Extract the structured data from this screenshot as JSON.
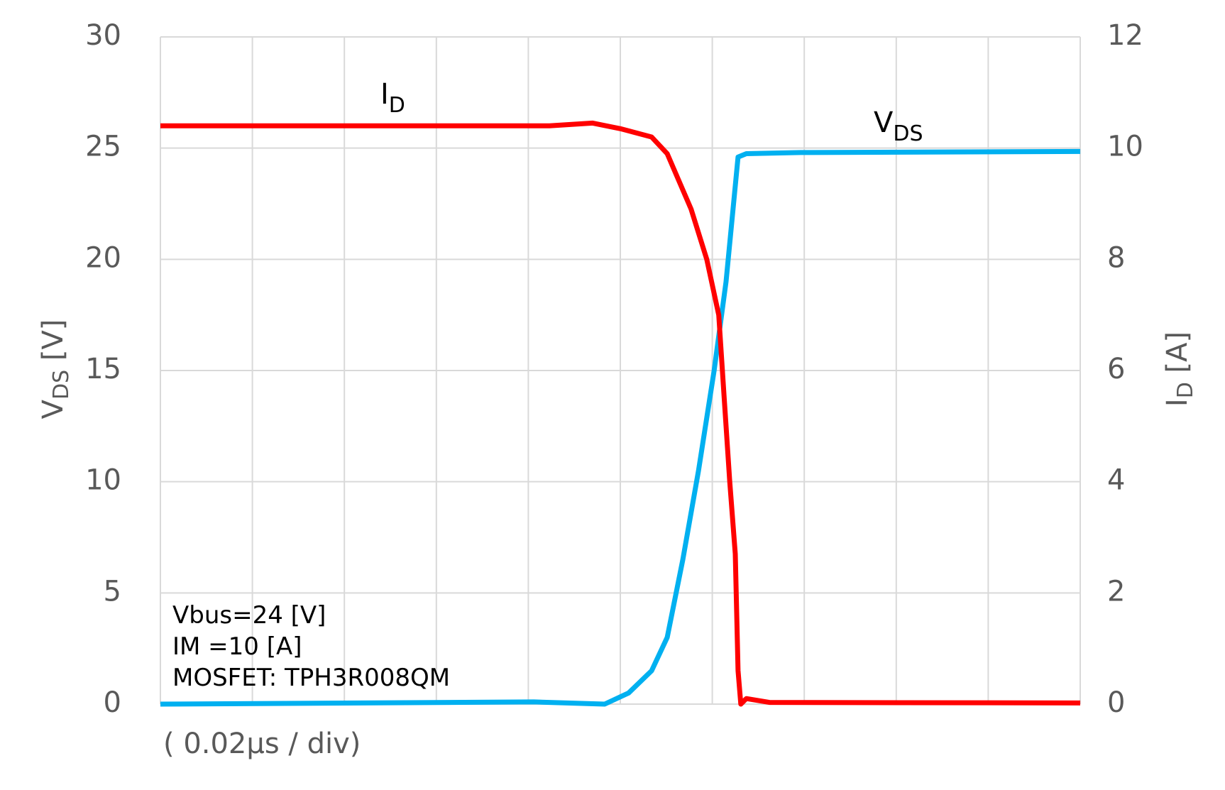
{
  "chart_data": {
    "type": "line",
    "x_label": "( 0.02μs / div)",
    "y_label": {
      "text": "V",
      "subscript": "DS",
      "suffix": " [V]"
    },
    "y2_label": {
      "text": "I",
      "subscript": "D",
      "suffix": " [A]"
    },
    "notes": [
      "Vbus=24 [V]",
      "IM =10 [A]",
      "MOSFET: TPH3R008QM"
    ],
    "xlim": [
      0,
      0.2
    ],
    "xticks": [
      0,
      0.02,
      0.04,
      0.06,
      0.08,
      0.1,
      0.12,
      0.14,
      0.16,
      0.18,
      0.2
    ],
    "ylim": [
      0,
      30
    ],
    "yticks": [
      0,
      5,
      10,
      15,
      20,
      25,
      30
    ],
    "y2lim": [
      0,
      12
    ],
    "y2ticks": [
      0,
      2,
      4,
      6,
      8,
      10,
      12
    ],
    "grid": true,
    "series": [
      {
        "label": {
          "text": "V",
          "subscript": "DS"
        },
        "color": "#00b0f0",
        "x": [
          0,
          0.0812,
          0.0966,
          0.1018,
          0.1068,
          0.1102,
          0.1136,
          0.117,
          0.1204,
          0.123,
          0.1256,
          0.1274,
          0.1392,
          0.2
        ],
        "values": [
          0,
          0.1,
          0,
          0.5,
          1.5,
          3,
          6.5,
          10.5,
          15,
          19,
          24.6,
          24.75,
          24.8,
          24.85
        ]
      },
      {
        "label": {
          "text": "I",
          "subscript": "D"
        },
        "color": "#ff0000",
        "axis": "y2",
        "x": [
          0,
          0.0846,
          0.094,
          0.1,
          0.1068,
          0.1102,
          0.1154,
          0.1188,
          0.1214,
          0.1226,
          0.1238,
          0.125,
          0.1256,
          0.1262,
          0.1274,
          0.1324,
          0.2
        ],
        "values": [
          10.4,
          10.4,
          10.45,
          10.35,
          10.2,
          9.9,
          8.9,
          8.0,
          7.0,
          5.5,
          4.0,
          2.7,
          0.6,
          0,
          0.1,
          0.03,
          0.02
        ]
      }
    ],
    "annotations": [
      {
        "text": "I",
        "subscript": "D",
        "series": 1
      },
      {
        "text": "V",
        "subscript": "DS",
        "series": 0
      }
    ]
  }
}
